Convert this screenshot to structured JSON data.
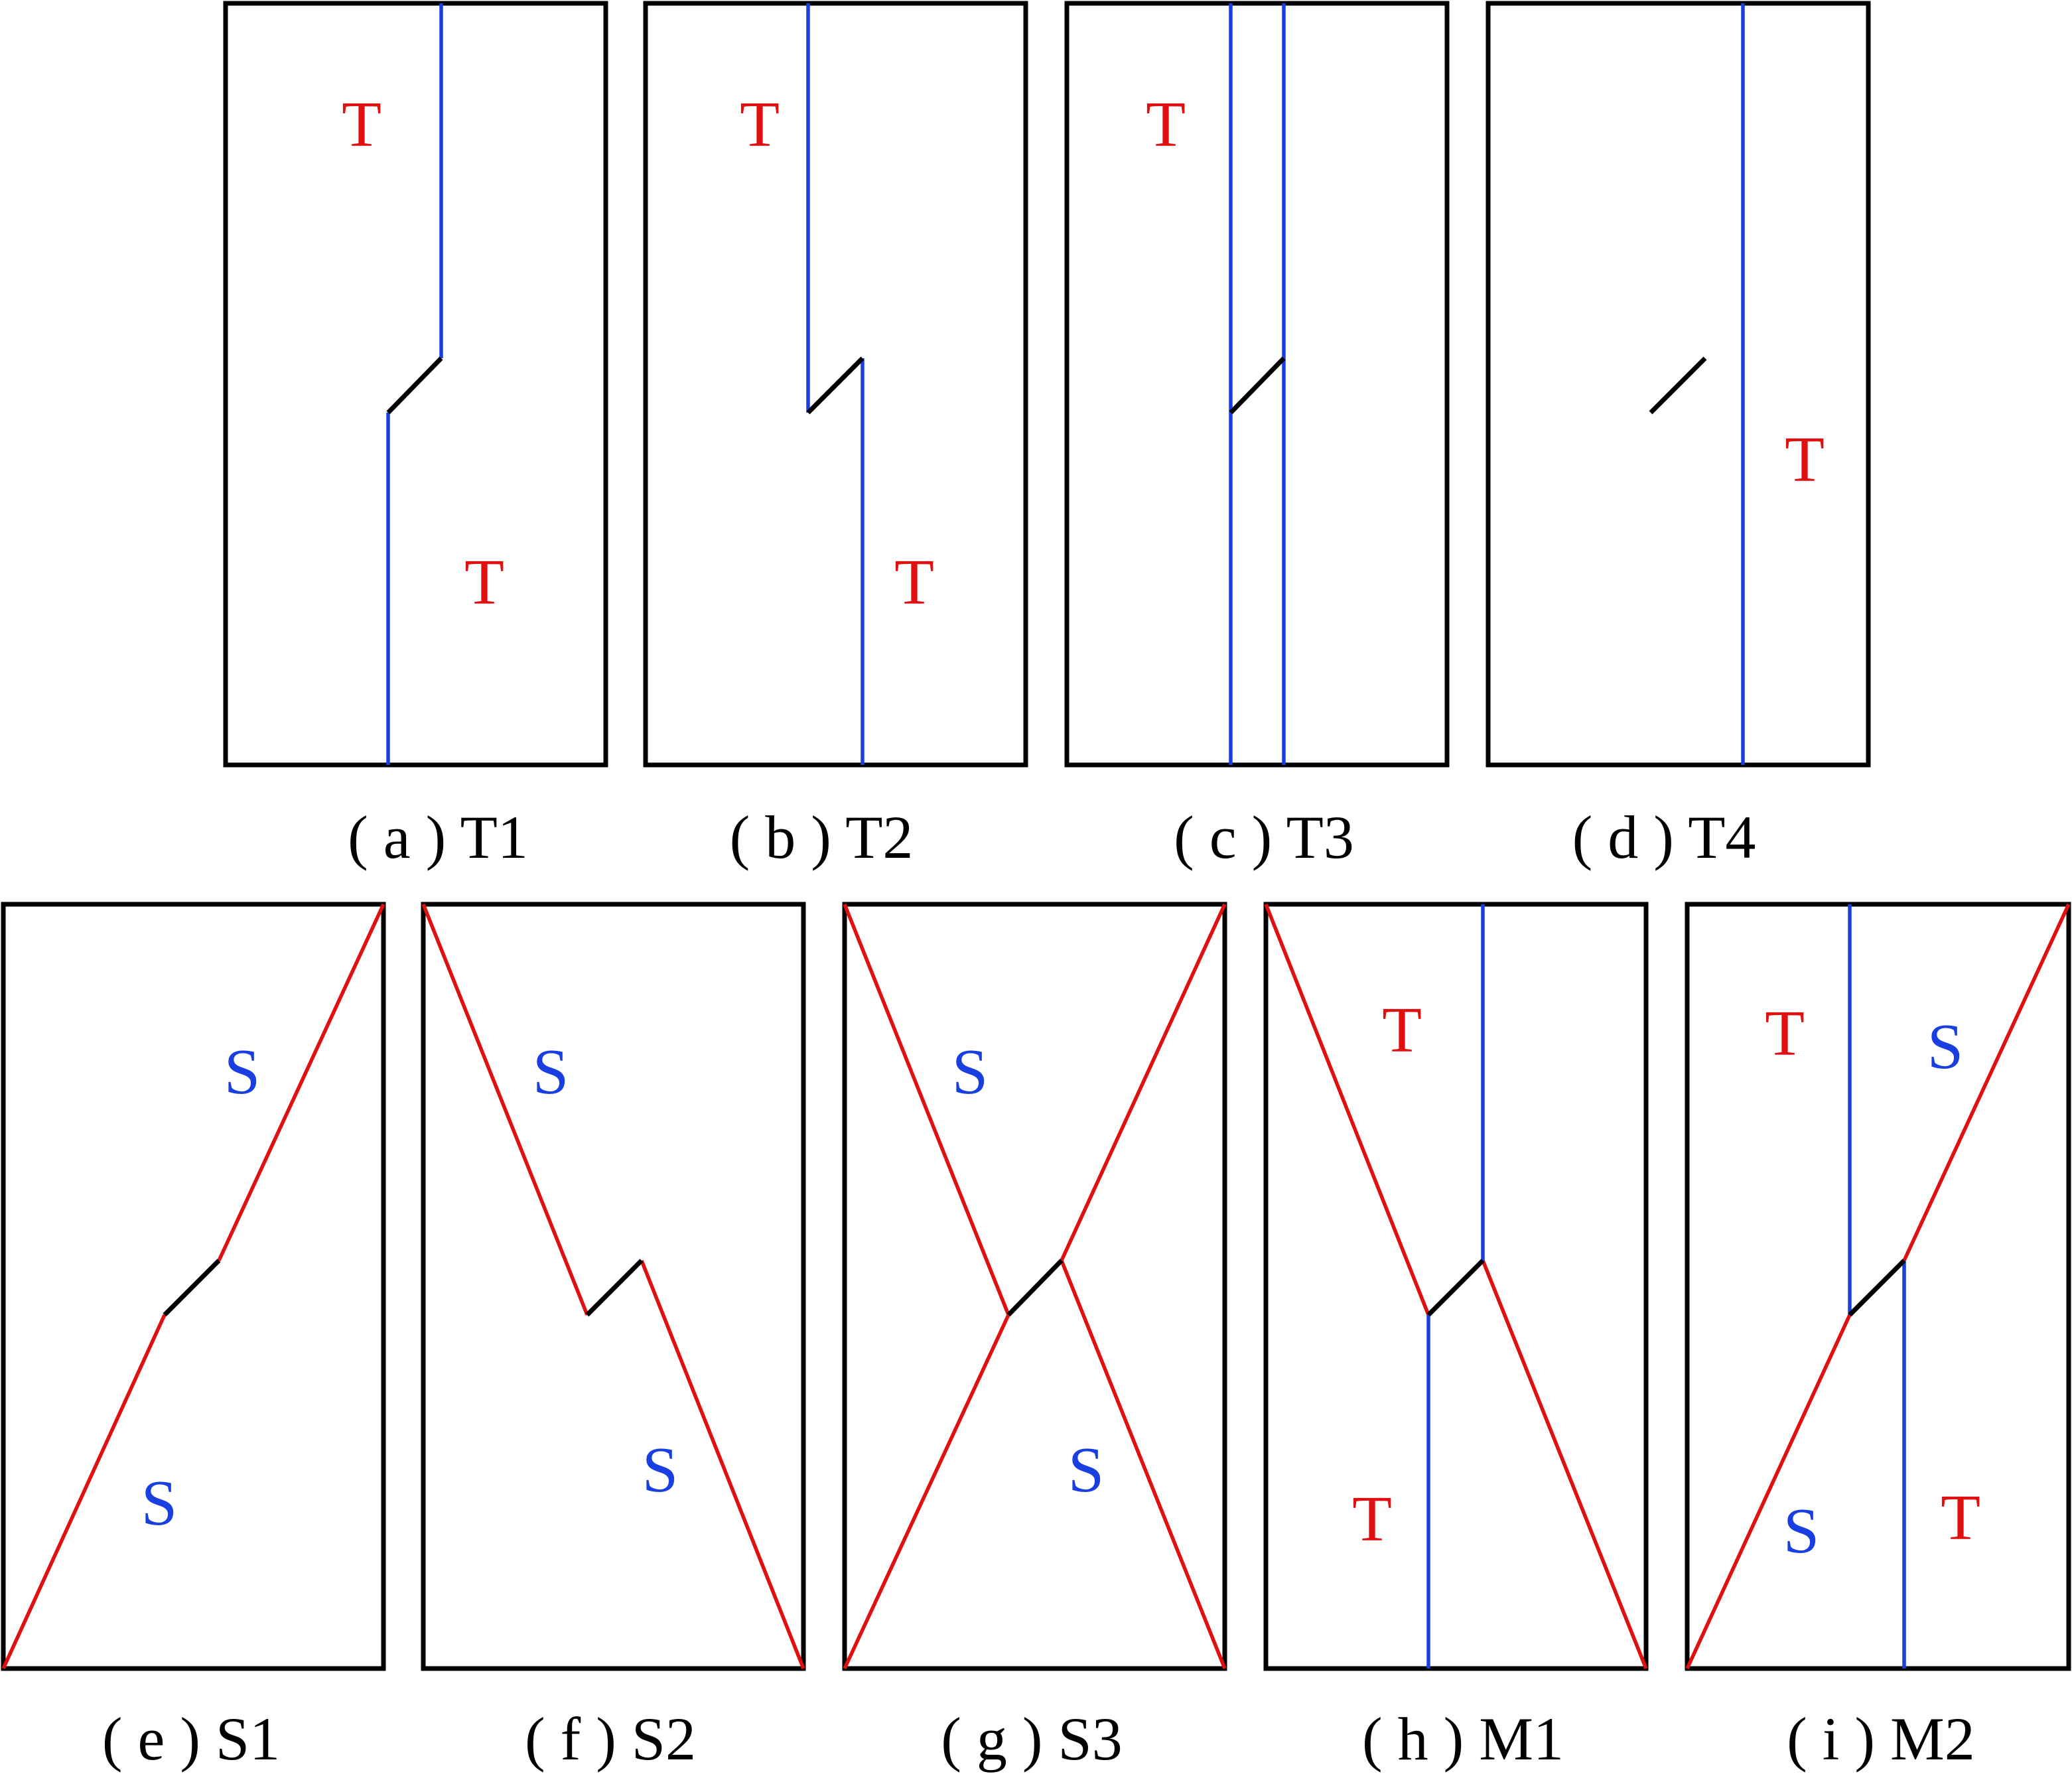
{
  "colors": {
    "tension": "#e01010",
    "shear": "#1a3fe0",
    "crack": "#000000",
    "frame": "#000000"
  },
  "panels": [
    {
      "id": "a",
      "caption": "( a ) T1",
      "marks": [
        "T",
        "T"
      ]
    },
    {
      "id": "b",
      "caption": "( b ) T2",
      "marks": [
        "T",
        "T"
      ]
    },
    {
      "id": "c",
      "caption": "( c ) T3",
      "marks": [
        "T"
      ]
    },
    {
      "id": "d",
      "caption": "( d ) T4",
      "marks": [
        "T"
      ]
    },
    {
      "id": "e",
      "caption": "( e ) S1",
      "marks": [
        "S",
        "S"
      ]
    },
    {
      "id": "f",
      "caption": "( f ) S2",
      "marks": [
        "S",
        "S"
      ]
    },
    {
      "id": "g",
      "caption": "( g ) S3",
      "marks": [
        "S",
        "S"
      ]
    },
    {
      "id": "h",
      "caption": "( h ) M1",
      "marks": [
        "T",
        "T"
      ]
    },
    {
      "id": "i",
      "caption": "( i ) M2",
      "marks": [
        "T",
        "S",
        "S",
        "T"
      ]
    }
  ]
}
